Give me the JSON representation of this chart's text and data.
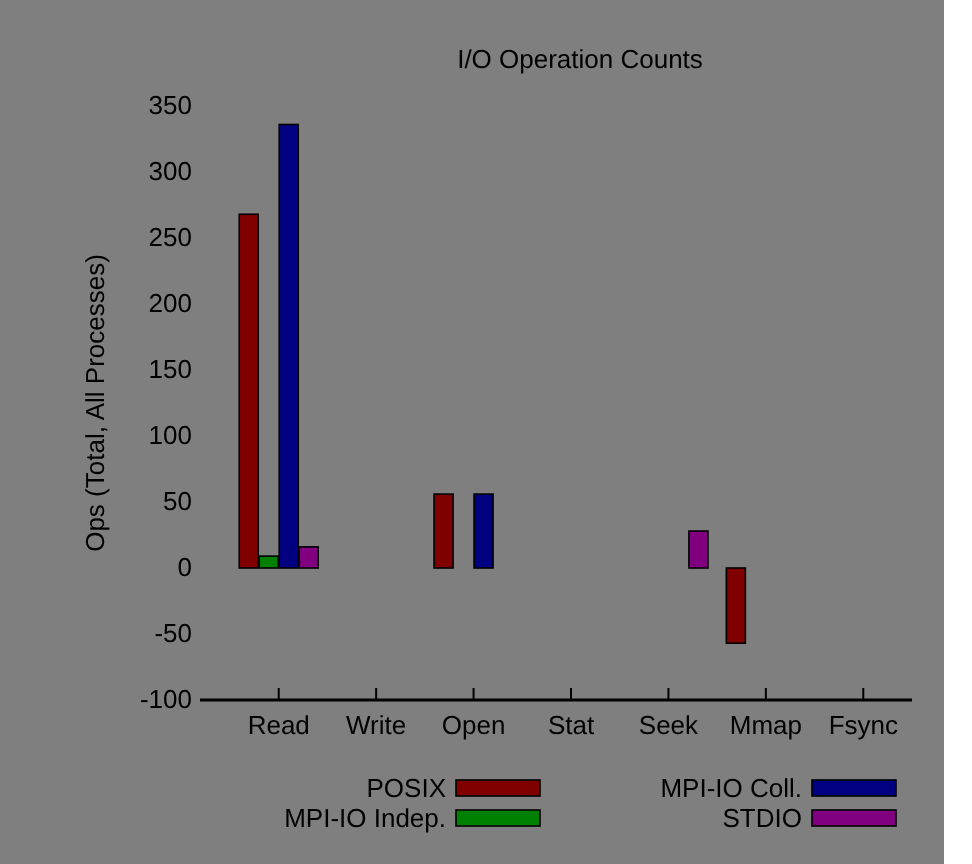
{
  "chart_data": {
    "type": "bar",
    "title": "I/O Operation Counts",
    "ylabel": "Ops (Total, All Processes)",
    "categories": [
      "Read",
      "Write",
      "Open",
      "Stat",
      "Seek",
      "Mmap",
      "Fsync"
    ],
    "series": [
      {
        "name": "POSIX",
        "color": "#800000",
        "values": [
          268,
          0,
          56,
          0,
          0,
          -57,
          0
        ]
      },
      {
        "name": "MPI-IO Indep.",
        "color": "#008000",
        "values": [
          9,
          0,
          0,
          0,
          0,
          0,
          0
        ]
      },
      {
        "name": "MPI-IO Coll.",
        "color": "#000080",
        "values": [
          336,
          0,
          56,
          0,
          0,
          0,
          0
        ]
      },
      {
        "name": "STDIO",
        "color": "#800080",
        "values": [
          16,
          0,
          0,
          0,
          28,
          0,
          0
        ]
      }
    ],
    "ylim": [
      -100,
      350
    ],
    "yticks": [
      -100,
      -50,
      0,
      50,
      100,
      150,
      200,
      250,
      300,
      350
    ],
    "legend": "bottom"
  }
}
